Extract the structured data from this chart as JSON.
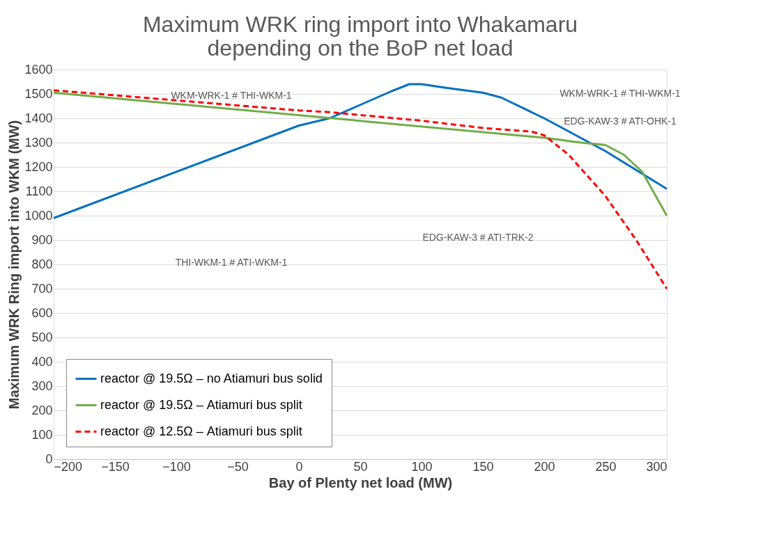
{
  "chart_data": {
    "type": "line",
    "title": "Maximum WRK ring import into Whakamaru depending on the BoP net load",
    "xlabel": "Bay of Plenty net load (MW)",
    "ylabel": "Maximum WRK Ring import into WKM (MW)",
    "xlim": [
      -200,
      300
    ],
    "xticks": [
      -200,
      -150,
      -100,
      -50,
      0,
      50,
      100,
      150,
      200,
      250,
      300
    ],
    "ylim": [
      0,
      1600
    ],
    "yticks": [
      0,
      100,
      200,
      300,
      400,
      500,
      600,
      700,
      800,
      900,
      1000,
      1100,
      1200,
      1300,
      1400,
      1500,
      1600
    ],
    "grid": "y",
    "legend": "bottom left",
    "marker": "none",
    "series": [
      {
        "name": "reactor @ 19.5Ω – no Atiamuri bus solid",
        "color": "#0070c0",
        "line_style": "solid",
        "x": [
          -200,
          0,
          25,
          50,
          75,
          90,
          100,
          120,
          150,
          165,
          200,
          250,
          300
        ],
        "values": [
          990,
          1370,
          1400,
          1455,
          1510,
          1540,
          1540,
          1525,
          1505,
          1485,
          1400,
          1265,
          1110
        ]
      },
      {
        "name": "reactor @ 19.5Ω – Atiamuri bus split",
        "color": "#70ad47",
        "line_style": "solid",
        "x": [
          -200,
          200,
          230,
          250,
          265,
          280,
          300
        ],
        "values": [
          1505,
          1320,
          1300,
          1290,
          1250,
          1180,
          1000
        ]
      },
      {
        "name": "reactor @ 12.5Ω – Atiamuri bus split",
        "color": "#ff0000",
        "line_style": "dashed",
        "x": [
          -200,
          0,
          25,
          100,
          150,
          190,
          200,
          220,
          250,
          275,
          300
        ],
        "values": [
          1515,
          1432,
          1425,
          1390,
          1360,
          1345,
          1330,
          1250,
          1080,
          900,
          700
        ]
      }
    ],
    "annotations": [
      "WKM-WRK-1 # THI-WKM-1",
      "WKM-WRK-1 # THI-WKM-1",
      "EDG-KAW-3 # ATI-OHK-1",
      "THI-WKM-1 # ATI-WKM-1",
      "EDG-KAW-3 # ATI-TRK-2"
    ]
  }
}
